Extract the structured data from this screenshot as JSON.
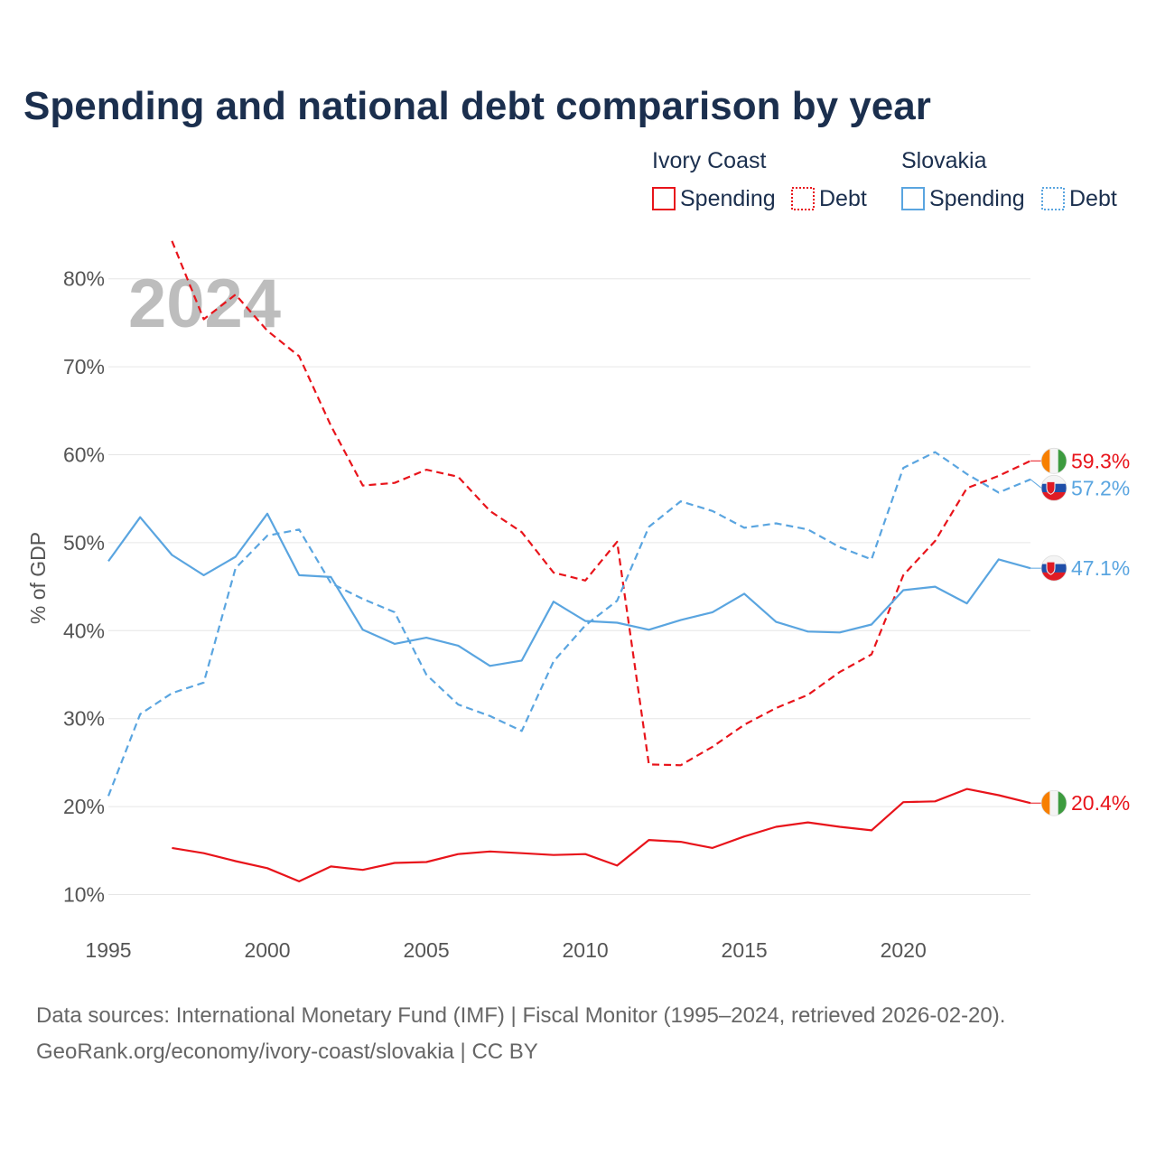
{
  "title": "Spending and national debt comparison by year",
  "watermark_year": "2024",
  "legend": {
    "countries": [
      {
        "name": "Ivory Coast",
        "color": "#e8141b",
        "items": [
          {
            "label": "Spending",
            "style": "solid"
          },
          {
            "label": "Debt",
            "style": "dotted"
          }
        ]
      },
      {
        "name": "Slovakia",
        "color": "#5aa5e0",
        "items": [
          {
            "label": "Spending",
            "style": "solid"
          },
          {
            "label": "Debt",
            "style": "dotted"
          }
        ]
      }
    ]
  },
  "footer": {
    "line1": "Data sources: International Monetary Fund (IMF) | Fiscal Monitor (1995–2024, retrieved 2026-02-20).",
    "line2": "GeoRank.org/economy/ivory-coast/slovakia | CC BY"
  },
  "chart_data": {
    "type": "line",
    "title": "Spending and national debt comparison by year",
    "xlabel": "",
    "ylabel": "% of GDP",
    "xlim": [
      1995,
      2024
    ],
    "ylim": [
      8,
      85
    ],
    "x_ticks": [
      1995,
      2000,
      2005,
      2010,
      2015,
      2020
    ],
    "y_ticks": [
      10,
      20,
      30,
      40,
      50,
      60,
      70,
      80
    ],
    "y_tick_labels": [
      "10%",
      "20%",
      "30%",
      "40%",
      "50%",
      "60%",
      "70%",
      "80%"
    ],
    "grid": true,
    "legend_position": "top-right",
    "series": [
      {
        "name": "Ivory Coast Spending",
        "country": "Ivory Coast",
        "metric": "Spending",
        "color": "#e8141b",
        "dash": "solid",
        "end_label": "20.4%",
        "flag": "civ",
        "x": [
          1997,
          1998,
          1999,
          2000,
          2001,
          2002,
          2003,
          2004,
          2005,
          2006,
          2007,
          2008,
          2009,
          2010,
          2011,
          2012,
          2013,
          2014,
          2015,
          2016,
          2017,
          2018,
          2019,
          2020,
          2021,
          2022,
          2023,
          2024
        ],
        "values": [
          15.3,
          14.7,
          13.8,
          13.0,
          11.5,
          13.2,
          12.8,
          13.6,
          13.7,
          14.6,
          14.9,
          14.7,
          14.5,
          14.6,
          13.3,
          16.2,
          16.0,
          15.3,
          16.6,
          17.7,
          18.2,
          17.7,
          17.3,
          20.5,
          20.6,
          22.0,
          21.3,
          20.4
        ]
      },
      {
        "name": "Ivory Coast Debt",
        "country": "Ivory Coast",
        "metric": "Debt",
        "color": "#e8141b",
        "dash": "dashed",
        "end_label": "59.3%",
        "flag": "civ",
        "x": [
          1997,
          1998,
          1999,
          2000,
          2001,
          2002,
          2003,
          2004,
          2005,
          2006,
          2007,
          2008,
          2009,
          2010,
          2011,
          2012,
          2013,
          2014,
          2015,
          2016,
          2017,
          2018,
          2019,
          2020,
          2021,
          2022,
          2023,
          2024
        ],
        "values": [
          84.3,
          75.4,
          78.2,
          74.1,
          71.2,
          63.3,
          56.5,
          56.8,
          58.3,
          57.5,
          53.6,
          51.2,
          46.6,
          45.7,
          50.1,
          24.8,
          24.7,
          26.8,
          29.3,
          31.2,
          32.7,
          35.3,
          37.3,
          46.3,
          50.2,
          56.2,
          57.6,
          59.3
        ]
      },
      {
        "name": "Slovakia Spending",
        "country": "Slovakia",
        "metric": "Spending",
        "color": "#5aa5e0",
        "dash": "solid",
        "end_label": "47.1%",
        "flag": "svk",
        "x": [
          1995,
          1996,
          1997,
          1998,
          1999,
          2000,
          2001,
          2002,
          2003,
          2004,
          2005,
          2006,
          2007,
          2008,
          2009,
          2010,
          2011,
          2012,
          2013,
          2014,
          2015,
          2016,
          2017,
          2018,
          2019,
          2020,
          2021,
          2022,
          2023,
          2024
        ],
        "values": [
          47.9,
          52.9,
          48.6,
          46.3,
          48.4,
          53.3,
          46.3,
          46.1,
          40.1,
          38.5,
          39.2,
          38.3,
          36.0,
          36.6,
          43.3,
          41.1,
          40.9,
          40.1,
          41.2,
          42.1,
          44.2,
          41.0,
          39.9,
          39.8,
          40.7,
          44.6,
          45.0,
          43.1,
          48.1,
          47.1
        ]
      },
      {
        "name": "Slovakia Debt",
        "country": "Slovakia",
        "metric": "Debt",
        "color": "#5aa5e0",
        "dash": "dashed",
        "end_label": "57.2%",
        "flag": "svk",
        "x": [
          1995,
          1996,
          1997,
          1998,
          1999,
          2000,
          2001,
          2002,
          2003,
          2004,
          2005,
          2006,
          2007,
          2008,
          2009,
          2010,
          2011,
          2012,
          2013,
          2014,
          2015,
          2016,
          2017,
          2018,
          2019,
          2020,
          2021,
          2022,
          2023,
          2024
        ],
        "values": [
          21.2,
          30.5,
          32.9,
          34.1,
          47.1,
          50.8,
          51.5,
          45.4,
          43.6,
          42.1,
          35.0,
          31.6,
          30.3,
          28.6,
          36.5,
          40.6,
          43.4,
          51.8,
          54.7,
          53.6,
          51.7,
          52.2,
          51.5,
          49.5,
          48.1,
          58.5,
          60.3,
          57.8,
          55.7,
          57.2
        ]
      }
    ]
  }
}
